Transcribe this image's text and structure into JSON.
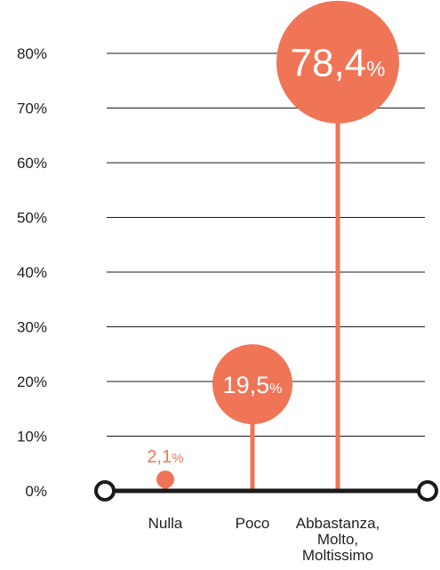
{
  "chart_data": {
    "type": "lollipop",
    "categories": [
      "Nulla",
      "Poco",
      "Abbastanza,\nMolto,\nMoltissimo"
    ],
    "values": [
      2.1,
      19.5,
      78.4
    ],
    "value_labels": [
      {
        "number": "2,1",
        "unit": "%"
      },
      {
        "number": "19,5",
        "unit": "%"
      },
      {
        "number": "78,4",
        "unit": "%"
      }
    ],
    "yticks": [
      0,
      10,
      20,
      30,
      40,
      50,
      60,
      70,
      80
    ],
    "ytick_labels": [
      "0%",
      "10%",
      "20%",
      "30%",
      "40%",
      "50%",
      "60%",
      "70%",
      "80%"
    ],
    "ylim": [
      0,
      80
    ],
    "grid": true,
    "title": "",
    "xlabel": "",
    "ylabel": ""
  },
  "colors": {
    "accent": "#f07456",
    "axis": "#1a1a1a",
    "grid": "#1a1a1a",
    "text": "#222222",
    "bubble_text": "#ffffff"
  }
}
